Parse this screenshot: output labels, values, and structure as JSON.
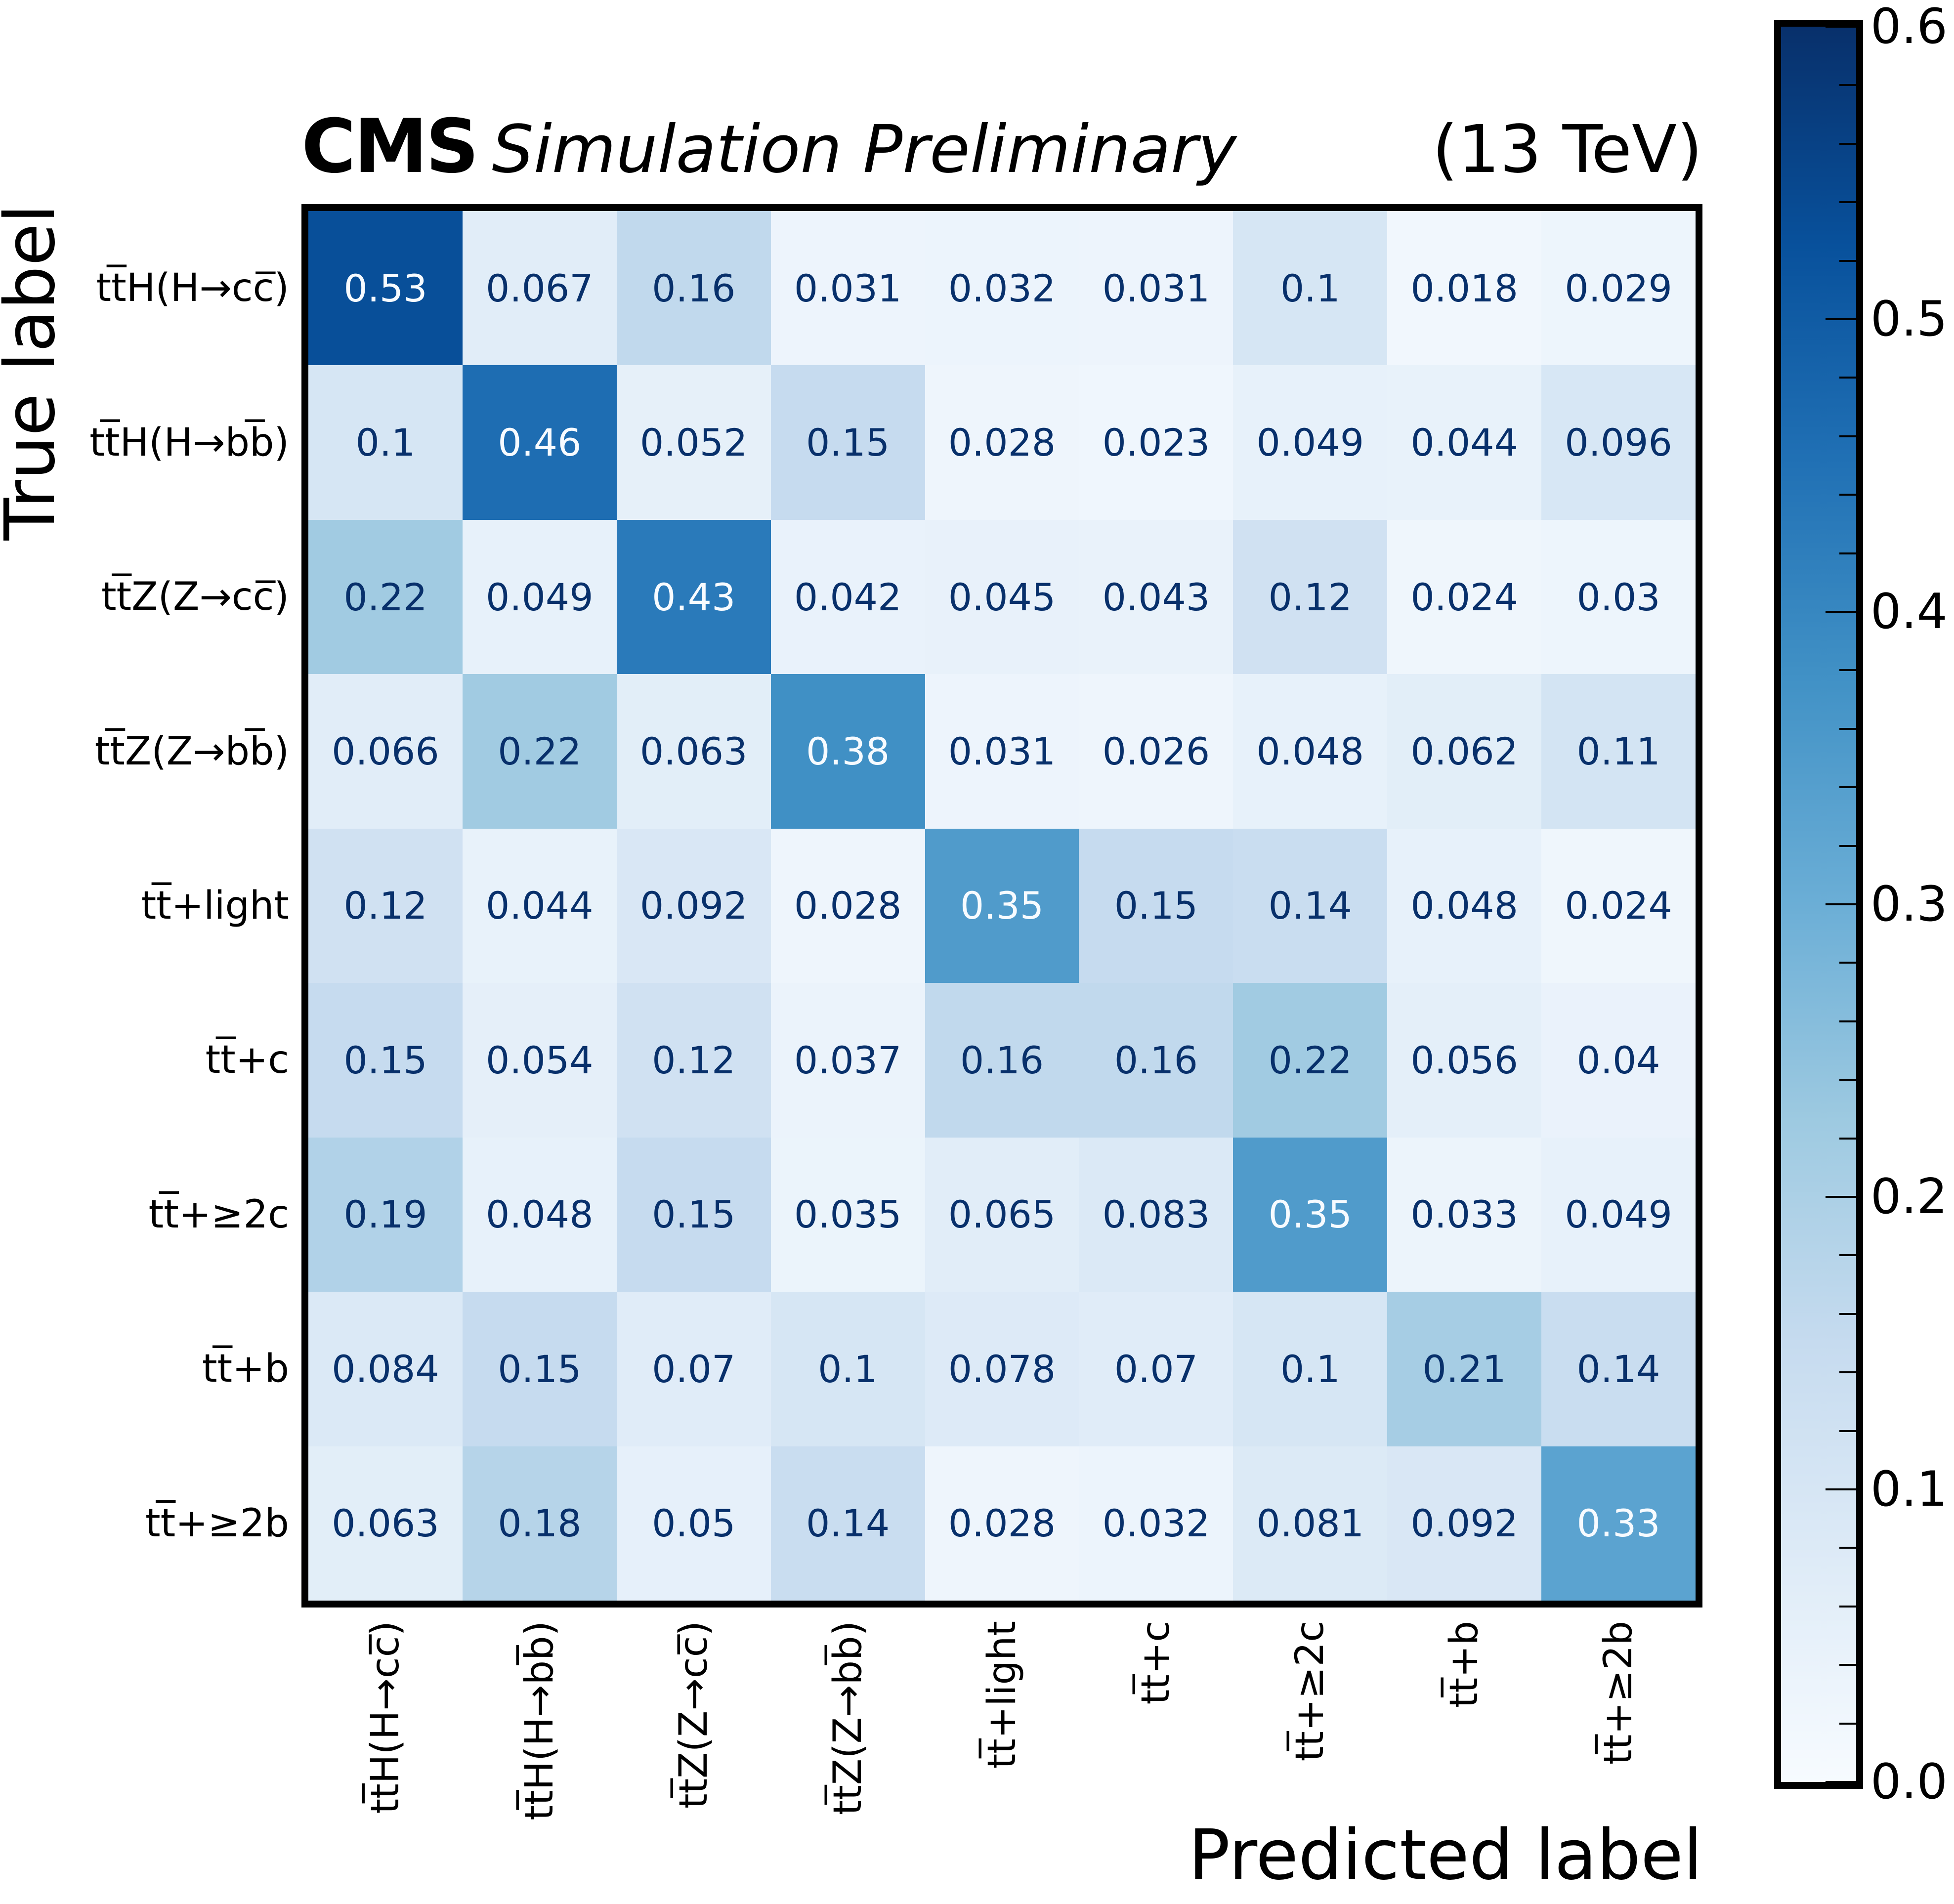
{
  "header": {
    "cms": "CMS",
    "simulation": "Simulation Preliminary",
    "energy": "(13 TeV)"
  },
  "chart_data": {
    "type": "heatmap",
    "title": "CMS Simulation Preliminary (13 TeV)",
    "xlabel": "Predicted label",
    "ylabel": "True label",
    "categories": [
      "tt̅H(H→cc̅)",
      "tt̅H(H→bb̅)",
      "tt̅Z(Z→cc̅)",
      "tt̅Z(Z→bb̅)",
      "tt̅+light",
      "tt̅+c",
      "tt̅+≥2c",
      "tt̅+b",
      "tt̅+≥2b"
    ],
    "rows": [
      [
        "0.53",
        "0.067",
        "0.16",
        "0.031",
        "0.032",
        "0.031",
        "0.1",
        "0.018",
        "0.029"
      ],
      [
        "0.1",
        "0.46",
        "0.052",
        "0.15",
        "0.028",
        "0.023",
        "0.049",
        "0.044",
        "0.096"
      ],
      [
        "0.22",
        "0.049",
        "0.43",
        "0.042",
        "0.045",
        "0.043",
        "0.12",
        "0.024",
        "0.03"
      ],
      [
        "0.066",
        "0.22",
        "0.063",
        "0.38",
        "0.031",
        "0.026",
        "0.048",
        "0.062",
        "0.11"
      ],
      [
        "0.12",
        "0.044",
        "0.092",
        "0.028",
        "0.35",
        "0.15",
        "0.14",
        "0.048",
        "0.024"
      ],
      [
        "0.15",
        "0.054",
        "0.12",
        "0.037",
        "0.16",
        "0.16",
        "0.22",
        "0.056",
        "0.04"
      ],
      [
        "0.19",
        "0.048",
        "0.15",
        "0.035",
        "0.065",
        "0.083",
        "0.35",
        "0.033",
        "0.049"
      ],
      [
        "0.084",
        "0.15",
        "0.07",
        "0.1",
        "0.078",
        "0.07",
        "0.1",
        "0.21",
        "0.14"
      ],
      [
        "0.063",
        "0.18",
        "0.05",
        "0.14",
        "0.028",
        "0.032",
        "0.081",
        "0.092",
        "0.33"
      ]
    ],
    "colormap": "Blues",
    "vmin": 0.0,
    "vmax": 0.6,
    "colorbar_ticks": [
      {
        "label": "0.6",
        "value": 0.6
      },
      {
        "label": "0.5",
        "value": 0.5
      },
      {
        "label": "0.4",
        "value": 0.4
      },
      {
        "label": "0.3",
        "value": 0.3
      },
      {
        "label": "0.2",
        "value": 0.2
      },
      {
        "label": "0.1",
        "value": 0.1
      },
      {
        "label": "0.0",
        "value": 0.0
      }
    ],
    "colorbar_minor_step": 0.02,
    "legend_position": "right",
    "grid": false
  },
  "colors": {
    "cmap_anchors": [
      [
        247,
        251,
        255
      ],
      [
        222,
        235,
        247
      ],
      [
        198,
        219,
        239
      ],
      [
        158,
        202,
        225
      ],
      [
        107,
        174,
        214
      ],
      [
        66,
        146,
        198
      ],
      [
        33,
        113,
        181
      ],
      [
        8,
        81,
        156
      ],
      [
        8,
        48,
        107
      ]
    ],
    "cell_text_dark": "#08306b",
    "cell_text_light": "#f7fbff",
    "frame": "#000000"
  }
}
